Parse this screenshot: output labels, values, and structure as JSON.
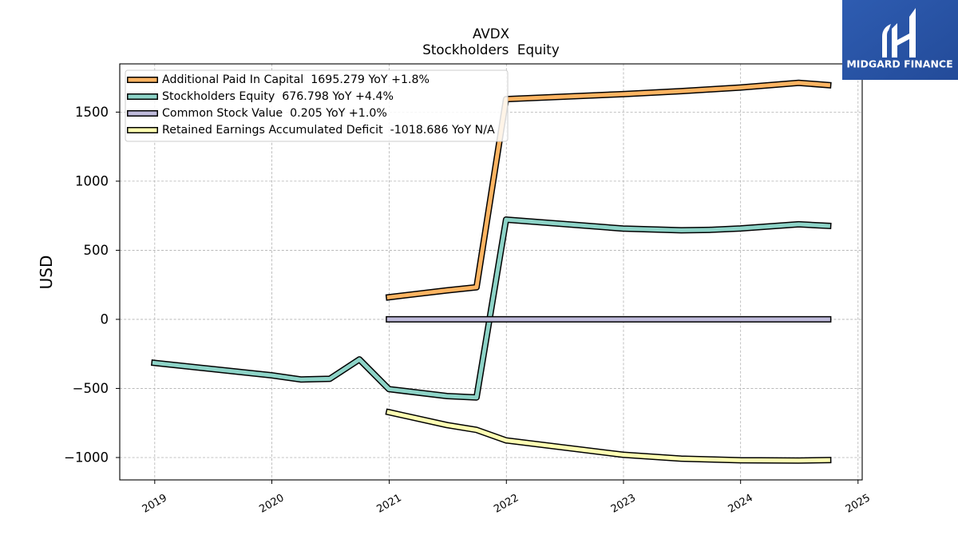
{
  "logo": {
    "brand": "MIDGARD FINANCE",
    "icon": "midgard-finance-logo-icon",
    "background_color": "#2a56a8"
  },
  "chart_data": {
    "type": "line",
    "title": "AVDX",
    "subtitle": "Stockholders  Equity",
    "xlabel": "",
    "ylabel": "USD",
    "x": [
      "2018-12-31",
      "2019-12-31",
      "2020-03-31",
      "2020-06-30",
      "2020-09-30",
      "2020-12-31",
      "2021-06-30",
      "2021-09-30",
      "2021-12-31",
      "2022-12-31",
      "2023-06-30",
      "2023-09-30",
      "2023-12-31",
      "2024-06-30",
      "2024-09-30"
    ],
    "xlim": [
      "2018-09-14",
      "2025-01-14"
    ],
    "ylim": [
      -1162,
      1849
    ],
    "xticks": [
      "2019-01-01",
      "2020-01-01",
      "2021-01-01",
      "2022-01-01",
      "2023-01-01",
      "2024-01-01",
      "2025-01-01"
    ],
    "xtick_labels": [
      "2019",
      "2020",
      "2021",
      "2022",
      "2023",
      "2024",
      "2025"
    ],
    "yticks": [
      -1000,
      -500,
      0,
      500,
      1000,
      1500
    ],
    "ytick_labels": [
      "−1000",
      "−500",
      "0",
      "500",
      "1000",
      "1500"
    ],
    "grid": true,
    "legend_position": "upper-left",
    "series": [
      {
        "name": "Additional Paid In Capital",
        "legend_stat": "1695.279 YoY +1.8%",
        "color": "#fdb462",
        "values": [
          null,
          null,
          null,
          null,
          null,
          160,
          210,
          232,
          1594,
          1630,
          1652,
          1665,
          1678,
          1712,
          1695.279
        ]
      },
      {
        "name": "Stockholders Equity",
        "legend_stat": "676.798 YoY +4.4%",
        "color": "#8dd3c7",
        "values": [
          -315,
          -405,
          -435,
          -430,
          -290,
          -505,
          -555,
          -565,
          722,
          657,
          645,
          648,
          658,
          688,
          676.798
        ]
      },
      {
        "name": "Common Stock Value",
        "legend_stat": "0.205 YoY +1.0%",
        "color": "#bebada",
        "values": [
          null,
          null,
          null,
          null,
          null,
          0.19,
          0.2,
          0.2,
          0.2,
          0.2,
          0.203,
          0.203,
          0.204,
          0.205,
          0.205
        ]
      },
      {
        "name": "Retained Earnings Accumulated Deficit",
        "legend_stat": "-1018.686 YoY N/A",
        "color": "#ffffb3",
        "values": [
          null,
          null,
          null,
          null,
          null,
          -672,
          -765,
          -800,
          -876,
          -980,
          -1008,
          -1014,
          -1020,
          -1022,
          -1018.686
        ]
      }
    ]
  }
}
